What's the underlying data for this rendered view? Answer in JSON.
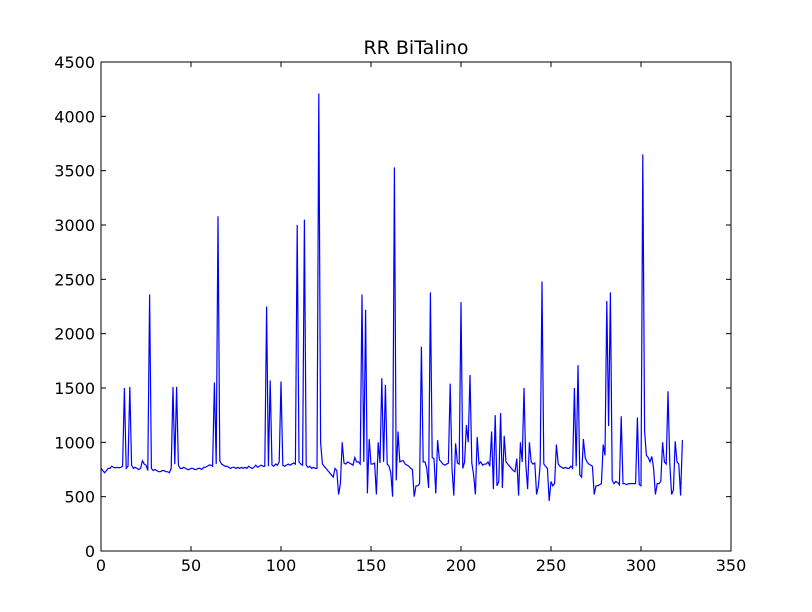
{
  "chart_data": {
    "type": "line",
    "title": "RR BiTalino",
    "xlabel": "",
    "ylabel": "",
    "xlim": [
      0,
      350
    ],
    "ylim": [
      0,
      4500
    ],
    "x_ticks": [
      0,
      50,
      100,
      150,
      200,
      250,
      300,
      350
    ],
    "y_ticks": [
      0,
      500,
      1000,
      1500,
      2000,
      2500,
      3000,
      3500,
      4000,
      4500
    ],
    "grid": false,
    "line_color": "#0000ff",
    "series": [
      {
        "points": [
          [
            0,
            760
          ],
          [
            1,
            740
          ],
          [
            2,
            720
          ],
          [
            3,
            740
          ],
          [
            4,
            760
          ],
          [
            5,
            760
          ],
          [
            6,
            780
          ],
          [
            7,
            770
          ],
          [
            8,
            765
          ],
          [
            9,
            770
          ],
          [
            10,
            765
          ],
          [
            11,
            770
          ],
          [
            12,
            780
          ],
          [
            13,
            1500
          ],
          [
            14,
            760
          ],
          [
            15,
            780
          ],
          [
            16,
            1510
          ],
          [
            17,
            790
          ],
          [
            18,
            760
          ],
          [
            19,
            770
          ],
          [
            20,
            760
          ],
          [
            21,
            750
          ],
          [
            22,
            760
          ],
          [
            23,
            830
          ],
          [
            24,
            800
          ],
          [
            25,
            790
          ],
          [
            26,
            740
          ],
          [
            27,
            2360
          ],
          [
            28,
            760
          ],
          [
            29,
            740
          ],
          [
            30,
            750
          ],
          [
            31,
            740
          ],
          [
            32,
            730
          ],
          [
            33,
            730
          ],
          [
            34,
            740
          ],
          [
            35,
            740
          ],
          [
            36,
            730
          ],
          [
            37,
            730
          ],
          [
            38,
            720
          ],
          [
            39,
            760
          ],
          [
            40,
            1510
          ],
          [
            41,
            800
          ],
          [
            42,
            1510
          ],
          [
            43,
            790
          ],
          [
            44,
            760
          ],
          [
            45,
            760
          ],
          [
            46,
            770
          ],
          [
            47,
            760
          ],
          [
            48,
            750
          ],
          [
            49,
            750
          ],
          [
            50,
            760
          ],
          [
            51,
            760
          ],
          [
            52,
            750
          ],
          [
            53,
            750
          ],
          [
            54,
            760
          ],
          [
            55,
            760
          ],
          [
            56,
            750
          ],
          [
            57,
            770
          ],
          [
            58,
            770
          ],
          [
            59,
            780
          ],
          [
            60,
            790
          ],
          [
            61,
            790
          ],
          [
            62,
            780
          ],
          [
            63,
            1550
          ],
          [
            64,
            800
          ],
          [
            65,
            3080
          ],
          [
            66,
            830
          ],
          [
            67,
            800
          ],
          [
            68,
            790
          ],
          [
            69,
            780
          ],
          [
            70,
            780
          ],
          [
            71,
            770
          ],
          [
            72,
            760
          ],
          [
            73,
            770
          ],
          [
            74,
            770
          ],
          [
            75,
            760
          ],
          [
            76,
            770
          ],
          [
            77,
            760
          ],
          [
            78,
            770
          ],
          [
            79,
            760
          ],
          [
            80,
            770
          ],
          [
            81,
            760
          ],
          [
            82,
            780
          ],
          [
            83,
            770
          ],
          [
            84,
            760
          ],
          [
            85,
            770
          ],
          [
            86,
            790
          ],
          [
            87,
            770
          ],
          [
            88,
            780
          ],
          [
            89,
            790
          ],
          [
            90,
            780
          ],
          [
            91,
            780
          ],
          [
            92,
            2250
          ],
          [
            93,
            780
          ],
          [
            94,
            1570
          ],
          [
            95,
            790
          ],
          [
            96,
            780
          ],
          [
            97,
            800
          ],
          [
            98,
            790
          ],
          [
            99,
            820
          ],
          [
            100,
            1560
          ],
          [
            101,
            790
          ],
          [
            102,
            780
          ],
          [
            103,
            790
          ],
          [
            104,
            800
          ],
          [
            105,
            790
          ],
          [
            106,
            800
          ],
          [
            107,
            810
          ],
          [
            108,
            800
          ],
          [
            109,
            3000
          ],
          [
            110,
            820
          ],
          [
            111,
            800
          ],
          [
            112,
            790
          ],
          [
            113,
            3050
          ],
          [
            114,
            790
          ],
          [
            115,
            770
          ],
          [
            116,
            780
          ],
          [
            117,
            760
          ],
          [
            118,
            770
          ],
          [
            119,
            760
          ],
          [
            120,
            760
          ],
          [
            121,
            4210
          ],
          [
            122,
            1000
          ],
          [
            123,
            800
          ],
          [
            124,
            780
          ],
          [
            125,
            760
          ],
          [
            126,
            740
          ],
          [
            127,
            720
          ],
          [
            128,
            700
          ],
          [
            129,
            680
          ],
          [
            130,
            760
          ],
          [
            131,
            740
          ],
          [
            132,
            520
          ],
          [
            133,
            620
          ],
          [
            134,
            1000
          ],
          [
            135,
            810
          ],
          [
            136,
            800
          ],
          [
            137,
            820
          ],
          [
            138,
            810
          ],
          [
            139,
            800
          ],
          [
            140,
            790
          ],
          [
            141,
            860
          ],
          [
            142,
            820
          ],
          [
            143,
            820
          ],
          [
            144,
            800
          ],
          [
            145,
            2360
          ],
          [
            146,
            820
          ],
          [
            147,
            2220
          ],
          [
            148,
            530
          ],
          [
            149,
            1030
          ],
          [
            150,
            800
          ],
          [
            151,
            800
          ],
          [
            152,
            810
          ],
          [
            153,
            520
          ],
          [
            154,
            1000
          ],
          [
            155,
            810
          ],
          [
            156,
            1590
          ],
          [
            157,
            820
          ],
          [
            158,
            1530
          ],
          [
            159,
            800
          ],
          [
            160,
            780
          ],
          [
            161,
            720
          ],
          [
            162,
            500
          ],
          [
            163,
            3530
          ],
          [
            164,
            650
          ],
          [
            165,
            1100
          ],
          [
            166,
            820
          ],
          [
            167,
            830
          ],
          [
            168,
            830
          ],
          [
            169,
            800
          ],
          [
            170,
            790
          ],
          [
            171,
            780
          ],
          [
            172,
            760
          ],
          [
            173,
            750
          ],
          [
            174,
            500
          ],
          [
            175,
            600
          ],
          [
            176,
            600
          ],
          [
            177,
            620
          ],
          [
            178,
            1880
          ],
          [
            179,
            820
          ],
          [
            180,
            820
          ],
          [
            181,
            760
          ],
          [
            182,
            580
          ],
          [
            183,
            2380
          ],
          [
            184,
            860
          ],
          [
            185,
            850
          ],
          [
            186,
            530
          ],
          [
            187,
            1020
          ],
          [
            188,
            840
          ],
          [
            189,
            820
          ],
          [
            190,
            800
          ],
          [
            191,
            790
          ],
          [
            192,
            800
          ],
          [
            193,
            810
          ],
          [
            194,
            1540
          ],
          [
            195,
            760
          ],
          [
            196,
            510
          ],
          [
            197,
            990
          ],
          [
            198,
            810
          ],
          [
            199,
            800
          ],
          [
            200,
            2290
          ],
          [
            201,
            760
          ],
          [
            202,
            820
          ],
          [
            203,
            1160
          ],
          [
            204,
            1000
          ],
          [
            205,
            1620
          ],
          [
            206,
            810
          ],
          [
            207,
            700
          ],
          [
            208,
            520
          ],
          [
            209,
            1050
          ],
          [
            210,
            800
          ],
          [
            211,
            820
          ],
          [
            212,
            790
          ],
          [
            213,
            800
          ],
          [
            214,
            800
          ],
          [
            215,
            820
          ],
          [
            216,
            780
          ],
          [
            217,
            1100
          ],
          [
            218,
            570
          ],
          [
            219,
            1250
          ],
          [
            220,
            600
          ],
          [
            221,
            640
          ],
          [
            222,
            1270
          ],
          [
            223,
            580
          ],
          [
            224,
            1060
          ],
          [
            225,
            820
          ],
          [
            226,
            800
          ],
          [
            227,
            780
          ],
          [
            228,
            760
          ],
          [
            229,
            740
          ],
          [
            230,
            730
          ],
          [
            231,
            850
          ],
          [
            232,
            510
          ],
          [
            233,
            1000
          ],
          [
            234,
            820
          ],
          [
            235,
            1500
          ],
          [
            236,
            800
          ],
          [
            237,
            570
          ],
          [
            238,
            1000
          ],
          [
            239,
            820
          ],
          [
            240,
            800
          ],
          [
            241,
            810
          ],
          [
            242,
            520
          ],
          [
            243,
            600
          ],
          [
            244,
            800
          ],
          [
            245,
            2480
          ],
          [
            246,
            800
          ],
          [
            247,
            780
          ],
          [
            248,
            760
          ],
          [
            249,
            460
          ],
          [
            250,
            640
          ],
          [
            251,
            600
          ],
          [
            252,
            620
          ],
          [
            253,
            980
          ],
          [
            254,
            800
          ],
          [
            255,
            780
          ],
          [
            256,
            770
          ],
          [
            257,
            760
          ],
          [
            258,
            770
          ],
          [
            259,
            760
          ],
          [
            260,
            760
          ],
          [
            261,
            780
          ],
          [
            262,
            760
          ],
          [
            263,
            1500
          ],
          [
            264,
            780
          ],
          [
            265,
            1710
          ],
          [
            266,
            700
          ],
          [
            267,
            680
          ],
          [
            268,
            1030
          ],
          [
            269,
            860
          ],
          [
            270,
            820
          ],
          [
            271,
            800
          ],
          [
            272,
            790
          ],
          [
            273,
            780
          ],
          [
            274,
            520
          ],
          [
            275,
            600
          ],
          [
            276,
            600
          ],
          [
            277,
            610
          ],
          [
            278,
            620
          ],
          [
            279,
            980
          ],
          [
            280,
            880
          ],
          [
            281,
            2300
          ],
          [
            282,
            1150
          ],
          [
            283,
            2380
          ],
          [
            284,
            650
          ],
          [
            285,
            620
          ],
          [
            286,
            640
          ],
          [
            287,
            630
          ],
          [
            288,
            610
          ],
          [
            289,
            1240
          ],
          [
            290,
            620
          ],
          [
            291,
            620
          ],
          [
            292,
            610
          ],
          [
            293,
            620
          ],
          [
            294,
            620
          ],
          [
            295,
            620
          ],
          [
            296,
            620
          ],
          [
            297,
            620
          ],
          [
            298,
            1230
          ],
          [
            299,
            610
          ],
          [
            300,
            600
          ],
          [
            301,
            3650
          ],
          [
            302,
            1100
          ],
          [
            303,
            880
          ],
          [
            304,
            860
          ],
          [
            305,
            820
          ],
          [
            306,
            870
          ],
          [
            307,
            760
          ],
          [
            308,
            520
          ],
          [
            309,
            620
          ],
          [
            310,
            620
          ],
          [
            311,
            640
          ],
          [
            312,
            1000
          ],
          [
            313,
            820
          ],
          [
            314,
            800
          ],
          [
            315,
            1470
          ],
          [
            316,
            800
          ],
          [
            317,
            520
          ],
          [
            318,
            560
          ],
          [
            319,
            1010
          ],
          [
            320,
            820
          ],
          [
            321,
            800
          ],
          [
            322,
            510
          ],
          [
            323,
            1020
          ]
        ]
      }
    ]
  }
}
